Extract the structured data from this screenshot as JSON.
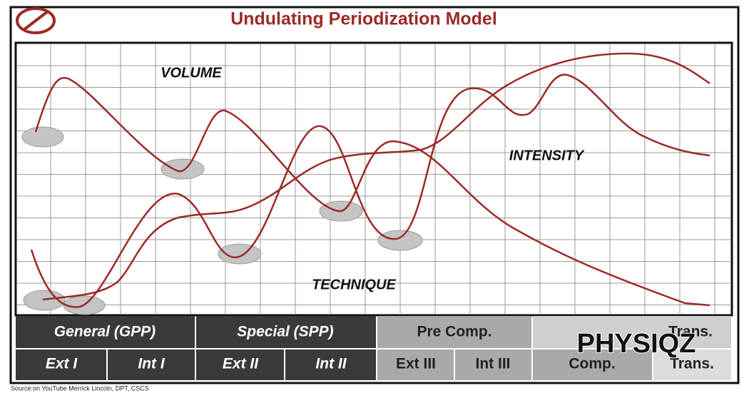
{
  "header": {
    "title": "Undulating Periodization Model"
  },
  "curve_labels": {
    "volume": "VOLUME",
    "intensity": "INTENSITY",
    "technique": "TECHNIQUE"
  },
  "phases": {
    "row1": [
      "General (GPP)",
      "Special (SPP)",
      "Pre Comp.",
      "Trans."
    ],
    "row2": [
      "Ext I",
      "Int I",
      "Ext II",
      "Int II",
      "Ext III",
      "Int III",
      "Comp.",
      "Trans."
    ]
  },
  "watermark": "PHYSIQZ",
  "source": "Source:on YouTube Merrick Lincoln, DPT, CSCS"
}
